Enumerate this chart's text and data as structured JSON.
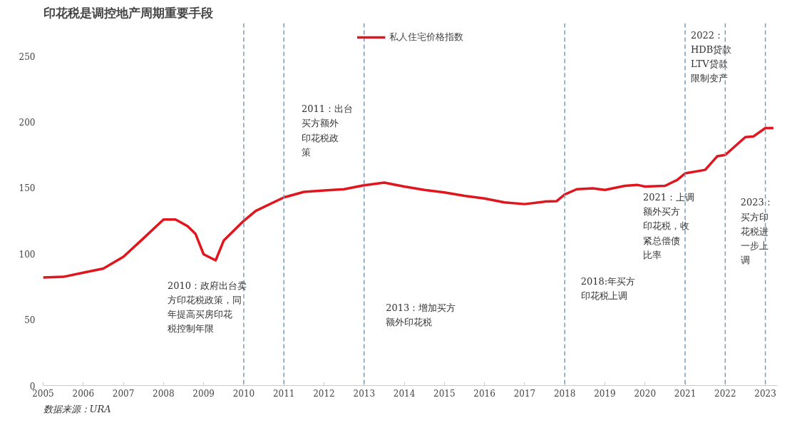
{
  "chart_data": {
    "type": "line",
    "title": "印花税是调控地产周期重要手段",
    "x": [
      2005.0,
      2005.5,
      2006.0,
      2006.5,
      2007.0,
      2007.5,
      2008.0,
      2008.3,
      2008.6,
      2008.8,
      2009.0,
      2009.3,
      2009.5,
      2010.0,
      2010.3,
      2011.0,
      2011.5,
      2012.0,
      2012.5,
      2013.0,
      2013.5,
      2014.0,
      2014.5,
      2015.0,
      2015.5,
      2016.0,
      2016.5,
      2017.0,
      2017.5,
      2017.8,
      2018.0,
      2018.3,
      2018.7,
      2019.0,
      2019.5,
      2019.8,
      2020.0,
      2020.5,
      2020.8,
      2021.0,
      2021.5,
      2021.8,
      2022.0,
      2022.5,
      2022.7,
      2023.0,
      2023.2
    ],
    "series": [
      {
        "name": "私人住宅价格指数",
        "color": "#e0161e",
        "values": [
          82,
          82.5,
          85.7,
          88.8,
          97.7,
          111.7,
          126,
          126,
          121,
          115,
          99.6,
          95,
          110,
          125,
          132.6,
          142.8,
          147,
          148,
          149,
          152,
          154,
          151,
          148.5,
          146.6,
          144,
          142,
          139,
          137.7,
          139.6,
          140,
          145,
          149,
          149.7,
          148.5,
          151.6,
          152.3,
          151,
          151.6,
          156,
          161,
          163.7,
          174,
          175,
          188.5,
          189,
          195.4,
          195.4
        ]
      }
    ],
    "xlim": [
      2005,
      2023.3
    ],
    "xticks": [
      2005,
      2006,
      2007,
      2008,
      2009,
      2010,
      2011,
      2012,
      2013,
      2014,
      2015,
      2016,
      2017,
      2018,
      2019,
      2020,
      2021,
      2022,
      2023
    ],
    "ylim": [
      0,
      275
    ],
    "yticks": [
      0,
      50,
      100,
      150,
      200,
      250
    ],
    "grid": false,
    "legend": "top",
    "line_style": "solid",
    "marker": "none",
    "ref_lines": [
      {
        "axis": "x",
        "value": 2010,
        "color": "#7a9cb8",
        "line_style": "dashed"
      },
      {
        "axis": "x",
        "value": 2011,
        "color": "#7a9cb8",
        "line_style": "dashed"
      },
      {
        "axis": "x",
        "value": 2013,
        "color": "#7a9cb8",
        "line_style": "dashed"
      },
      {
        "axis": "x",
        "value": 2018,
        "color": "#7a9cb8",
        "line_style": "dashed"
      },
      {
        "axis": "x",
        "value": 2021,
        "color": "#7a9cb8",
        "line_style": "dashed"
      },
      {
        "axis": "x",
        "value": 2022,
        "color": "#7a9cb8",
        "line_style": "dashed"
      },
      {
        "axis": "x",
        "value": 2023,
        "color": "#7a9cb8",
        "line_style": "dashed"
      }
    ],
    "annotations": [
      "2010：政府出台卖方印花税政策，同年提高买房印花税控制年限",
      "2011：出台买方额外印花税政策",
      "2013：增加买方额外印花税",
      "2018:年买方印花税上调",
      "2021：上调额外买方印花税，收紧总偿债比率",
      "2022：HDB贷款LTV贷款限制变产",
      "2023：买方印花税进一步上调",
      "数据来源：URA"
    ]
  }
}
